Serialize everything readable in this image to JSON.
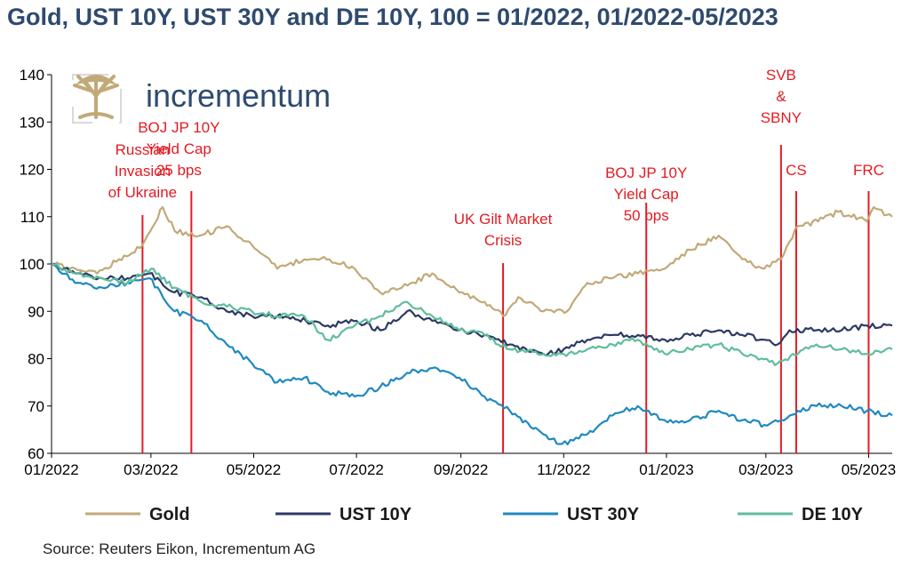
{
  "title": "Gold, UST 10Y, UST 30Y and DE 10Y, 100 = 01/2022, 01/2022-05/2023",
  "source": "Source: Reuters Eikon, Incrementum AG",
  "logo": {
    "text": "incrementum",
    "icon": "tree-icon"
  },
  "colors": {
    "gold": "#c2a978",
    "ust10": "#2c3a64",
    "ust30": "#1f8ac0",
    "de10": "#5fbd9c",
    "annotation": "#e31b23"
  },
  "chart_data": {
    "type": "line",
    "title": "Gold, UST 10Y, UST 30Y and DE 10Y, 100 = 01/2022, 01/2022-05/2023",
    "xlabel": "",
    "ylabel": "",
    "ylim": [
      60,
      140
    ],
    "yticks": [
      "60",
      "70",
      "80",
      "90",
      "100",
      "110",
      "120",
      "130",
      "140"
    ],
    "xlim": [
      "2022-01-01",
      "2023-05-15"
    ],
    "xticks": [
      {
        "date": "2022-01-01",
        "label": "01/2022"
      },
      {
        "date": "2022-03-01",
        "label": "03/2022"
      },
      {
        "date": "2022-05-01",
        "label": "05/2022"
      },
      {
        "date": "2022-07-01",
        "label": "07/2022"
      },
      {
        "date": "2022-09-01",
        "label": "09/2022"
      },
      {
        "date": "2022-11-01",
        "label": "11/2022"
      },
      {
        "date": "2023-01-01",
        "label": "01/2023"
      },
      {
        "date": "2023-03-01",
        "label": "03/2023"
      },
      {
        "date": "2023-05-01",
        "label": "05/2023"
      }
    ],
    "grid": false,
    "legend": "bottom",
    "series": [
      {
        "name": "Gold",
        "color": "#c2a978",
        "points": [
          [
            "2022-01-01",
            100
          ],
          [
            "2022-01-15",
            99
          ],
          [
            "2022-01-28",
            98
          ],
          [
            "2022-02-10",
            101
          ],
          [
            "2022-02-24",
            104
          ],
          [
            "2022-03-08",
            112
          ],
          [
            "2022-03-15",
            107
          ],
          [
            "2022-03-30",
            106
          ],
          [
            "2022-04-15",
            108
          ],
          [
            "2022-04-30",
            104
          ],
          [
            "2022-05-15",
            99
          ],
          [
            "2022-05-31",
            101
          ],
          [
            "2022-06-15",
            101
          ],
          [
            "2022-06-30",
            99
          ],
          [
            "2022-07-15",
            94
          ],
          [
            "2022-07-28",
            95
          ],
          [
            "2022-08-15",
            98
          ],
          [
            "2022-08-31",
            94
          ],
          [
            "2022-09-15",
            92
          ],
          [
            "2022-09-26",
            89
          ],
          [
            "2022-10-05",
            93
          ],
          [
            "2022-10-20",
            90
          ],
          [
            "2022-11-03",
            90
          ],
          [
            "2022-11-15",
            96
          ],
          [
            "2022-11-30",
            97
          ],
          [
            "2022-12-15",
            98
          ],
          [
            "2022-12-31",
            99
          ],
          [
            "2023-01-15",
            103
          ],
          [
            "2023-02-01",
            106
          ],
          [
            "2023-02-15",
            101
          ],
          [
            "2023-02-28",
            99
          ],
          [
            "2023-03-10",
            101
          ],
          [
            "2023-03-20",
            108
          ],
          [
            "2023-04-01",
            109
          ],
          [
            "2023-04-13",
            111
          ],
          [
            "2023-04-30",
            109
          ],
          [
            "2023-05-04",
            112
          ],
          [
            "2023-05-15",
            110
          ]
        ]
      },
      {
        "name": "UST 10Y",
        "color": "#2c3a64",
        "points": [
          [
            "2022-01-01",
            100
          ],
          [
            "2022-01-15",
            98
          ],
          [
            "2022-01-31",
            97
          ],
          [
            "2022-02-15",
            97
          ],
          [
            "2022-02-28",
            98
          ],
          [
            "2022-03-15",
            94
          ],
          [
            "2022-03-31",
            93
          ],
          [
            "2022-04-15",
            90
          ],
          [
            "2022-04-30",
            89
          ],
          [
            "2022-05-15",
            89
          ],
          [
            "2022-06-01",
            88
          ],
          [
            "2022-06-14",
            87
          ],
          [
            "2022-07-01",
            88
          ],
          [
            "2022-07-15",
            86
          ],
          [
            "2022-07-31",
            90
          ],
          [
            "2022-08-15",
            88
          ],
          [
            "2022-08-31",
            86
          ],
          [
            "2022-09-15",
            85
          ],
          [
            "2022-09-30",
            83
          ],
          [
            "2022-10-20",
            81
          ],
          [
            "2022-11-01",
            82
          ],
          [
            "2022-11-15",
            84
          ],
          [
            "2022-11-30",
            85
          ],
          [
            "2022-12-15",
            85
          ],
          [
            "2022-12-31",
            84
          ],
          [
            "2023-01-15",
            85
          ],
          [
            "2023-02-01",
            86
          ],
          [
            "2023-02-15",
            85
          ],
          [
            "2023-02-28",
            84
          ],
          [
            "2023-03-08",
            83
          ],
          [
            "2023-03-15",
            86
          ],
          [
            "2023-03-31",
            86
          ],
          [
            "2023-04-15",
            86
          ],
          [
            "2023-04-30",
            87
          ],
          [
            "2023-05-15",
            87
          ]
        ]
      },
      {
        "name": "UST 30Y",
        "color": "#1f8ac0",
        "points": [
          [
            "2022-01-01",
            100
          ],
          [
            "2022-01-15",
            96
          ],
          [
            "2022-01-31",
            95
          ],
          [
            "2022-02-15",
            96
          ],
          [
            "2022-02-28",
            97
          ],
          [
            "2022-03-15",
            90
          ],
          [
            "2022-03-31",
            88
          ],
          [
            "2022-04-15",
            83
          ],
          [
            "2022-04-30",
            79
          ],
          [
            "2022-05-15",
            75
          ],
          [
            "2022-05-31",
            76
          ],
          [
            "2022-06-14",
            73
          ],
          [
            "2022-06-30",
            72
          ],
          [
            "2022-07-15",
            74
          ],
          [
            "2022-07-31",
            77
          ],
          [
            "2022-08-15",
            78
          ],
          [
            "2022-08-31",
            76
          ],
          [
            "2022-09-15",
            72
          ],
          [
            "2022-09-30",
            69
          ],
          [
            "2022-10-20",
            64
          ],
          [
            "2022-10-31",
            62
          ],
          [
            "2022-11-15",
            64
          ],
          [
            "2022-11-30",
            68
          ],
          [
            "2022-12-15",
            70
          ],
          [
            "2022-12-31",
            67
          ],
          [
            "2023-01-15",
            67
          ],
          [
            "2023-02-01",
            69
          ],
          [
            "2023-02-15",
            67
          ],
          [
            "2023-02-28",
            66
          ],
          [
            "2023-03-10",
            67
          ],
          [
            "2023-03-20",
            69
          ],
          [
            "2023-03-31",
            70
          ],
          [
            "2023-04-15",
            70
          ],
          [
            "2023-04-30",
            69
          ],
          [
            "2023-05-15",
            68
          ]
        ]
      },
      {
        "name": "DE 10Y",
        "color": "#5fbd9c",
        "points": [
          [
            "2022-01-01",
            100
          ],
          [
            "2022-01-15",
            98
          ],
          [
            "2022-01-31",
            97
          ],
          [
            "2022-02-15",
            96
          ],
          [
            "2022-03-01",
            99
          ],
          [
            "2022-03-15",
            95
          ],
          [
            "2022-03-31",
            92
          ],
          [
            "2022-04-15",
            91
          ],
          [
            "2022-04-30",
            90
          ],
          [
            "2022-05-15",
            89
          ],
          [
            "2022-05-31",
            89
          ],
          [
            "2022-06-14",
            84
          ],
          [
            "2022-06-30",
            87
          ],
          [
            "2022-07-15",
            89
          ],
          [
            "2022-07-31",
            92
          ],
          [
            "2022-08-15",
            89
          ],
          [
            "2022-08-31",
            86
          ],
          [
            "2022-09-15",
            85
          ],
          [
            "2022-09-30",
            82
          ],
          [
            "2022-10-20",
            81
          ],
          [
            "2022-11-01",
            81
          ],
          [
            "2022-11-15",
            82
          ],
          [
            "2022-11-30",
            83
          ],
          [
            "2022-12-15",
            84
          ],
          [
            "2022-12-31",
            81
          ],
          [
            "2023-01-15",
            82
          ],
          [
            "2023-02-01",
            83
          ],
          [
            "2023-02-15",
            81
          ],
          [
            "2023-03-08",
            79
          ],
          [
            "2023-03-20",
            81
          ],
          [
            "2023-03-31",
            83
          ],
          [
            "2023-04-15",
            82
          ],
          [
            "2023-04-30",
            81
          ],
          [
            "2023-05-15",
            82
          ]
        ]
      }
    ],
    "annotations": [
      {
        "date": "2022-02-24",
        "lines": [
          "Russian",
          "Invasion",
          "of Ukraine"
        ]
      },
      {
        "date": "2022-03-25",
        "lines": [
          "BOJ JP 10Y",
          "Yield Cap",
          "25 bps"
        ]
      },
      {
        "date": "2022-09-26",
        "lines": [
          "UK Gilt Market",
          "Crisis"
        ]
      },
      {
        "date": "2022-12-20",
        "lines": [
          "BOJ JP 10Y",
          "Yield Cap",
          "50 bps"
        ]
      },
      {
        "date": "2023-03-10",
        "lines": [
          "SVB",
          "&",
          "SBNY"
        ]
      },
      {
        "date": "2023-03-19",
        "lines": [
          "CS"
        ]
      },
      {
        "date": "2023-05-01",
        "lines": [
          "FRC"
        ]
      }
    ]
  }
}
